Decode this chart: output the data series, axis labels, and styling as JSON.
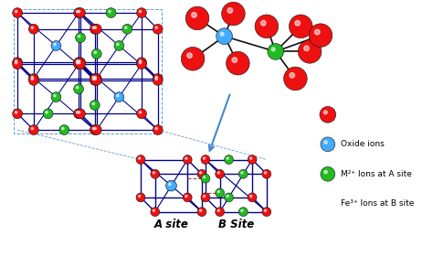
{
  "bg_color": "#ffffff",
  "red_color": "#ee1111",
  "blue_color": "#44aaff",
  "green_color": "#22bb22",
  "navy_color": "#00008b",
  "dashed_color": "#6699cc",
  "arrow_color": "#4488cc",
  "legend_labels": [
    "Oxide ions",
    "M²⁺ Ions at A site",
    "Fe³⁺ Ions at B site"
  ],
  "bottom_labels": [
    "A site",
    "B Site"
  ]
}
